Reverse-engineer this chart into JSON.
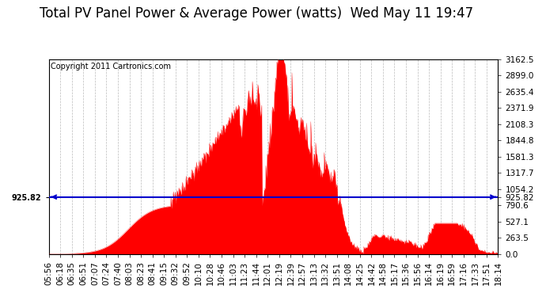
{
  "title": "Total PV Panel Power & Average Power (watts)  Wed May 11 19:47",
  "copyright": "Copyright 2011 Cartronics.com",
  "average_power": 925.82,
  "y_max": 3162.5,
  "y_ticks": [
    0.0,
    263.5,
    527.1,
    790.6,
    1054.2,
    1317.7,
    1581.3,
    1844.8,
    2108.3,
    2371.9,
    2635.4,
    2899.0,
    3162.5
  ],
  "x_labels": [
    "05:56",
    "06:18",
    "06:35",
    "06:51",
    "07:07",
    "07:24",
    "07:40",
    "08:03",
    "08:23",
    "08:41",
    "09:15",
    "09:32",
    "09:52",
    "10:10",
    "10:28",
    "10:46",
    "11:03",
    "11:23",
    "11:44",
    "12:01",
    "12:19",
    "12:39",
    "12:57",
    "13:13",
    "13:32",
    "13:51",
    "14:08",
    "14:25",
    "14:42",
    "14:58",
    "15:17",
    "15:36",
    "15:56",
    "16:14",
    "16:19",
    "16:59",
    "17:16",
    "17:33",
    "17:51",
    "18:14"
  ],
  "fill_color": "#FF0000",
  "line_color": "#FF0000",
  "avg_line_color": "#0000CC",
  "background_color": "#FFFFFF",
  "grid_color": "#AAAAAA",
  "title_fontsize": 12,
  "tick_fontsize": 7.5,
  "copyright_fontsize": 7
}
